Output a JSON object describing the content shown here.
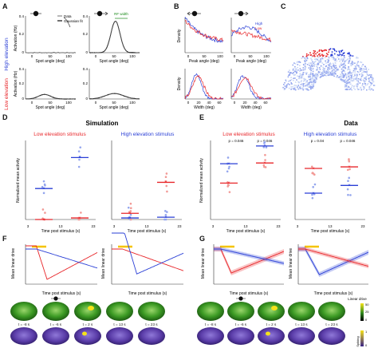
{
  "panel_letters": [
    "A",
    "B",
    "C",
    "D",
    "E",
    "F",
    "G"
  ],
  "row_labels": {
    "high": "High elevation",
    "low": "Low elevation"
  },
  "colors": {
    "red": "#e8262a",
    "blue": "#2a3fd6",
    "light_red": "#f29a96",
    "light_blue": "#94a6ee",
    "gray": "#999999",
    "yellow": "#f5c400",
    "green_brain": "#2f8a1e",
    "purple_brain": "#5e3fb0"
  },
  "panel_a": {
    "ylabel": "Activation (Hz)",
    "xlabel": "Spot angle (deg)",
    "legend": [
      "Data",
      "Gaussian fit"
    ],
    "rf_label": "RF width",
    "y_ticks_top": [
      "0.4",
      "0.2",
      "0"
    ],
    "y_ticks_bottom": [
      "0.4",
      "0.2",
      "0"
    ],
    "x_ticks": [
      "0",
      "50",
      "100"
    ]
  },
  "panel_b": {
    "ylabel_top": "Density",
    "ylabel_bottom": "Density",
    "xlabel_top": "Peak angle (deg)",
    "xlabel_bottom": "Width (deg)",
    "legend": [
      "High",
      "Low"
    ],
    "x_ticks_top": [
      "0",
      "50",
      "100"
    ],
    "x_ticks_bottom": [
      "0",
      "20",
      "40",
      "60"
    ]
  },
  "panel_d": {
    "section_title": "Simulation",
    "left_title": "Low elevation stimulus",
    "right_title": "High elevation stimulus",
    "ylabel": "Normalized mean activity",
    "xlabel": "Time post stimulus (s)",
    "x_ticks": [
      "3",
      "13",
      "23"
    ],
    "y_ticks": [
      "1",
      "0.8",
      "0.6",
      "0.4",
      "0.2",
      "0"
    ]
  },
  "panel_e": {
    "section_title": "Data",
    "left_title": "Low elevation stimulus",
    "right_title": "High elevation stimulus",
    "ylabel": "Normalized mean activity",
    "xlabel": "Time post stimulus (s)",
    "x_ticks": [
      "3",
      "13",
      "23"
    ],
    "y_ticks": [
      "1",
      "0.8",
      "0.6",
      "0.4",
      "0.2",
      "0"
    ],
    "pvals_left": [
      "p = 0.046",
      "p = 0.046"
    ],
    "pvals_right": [
      "p = 0.04",
      "p = 0.046"
    ]
  },
  "panel_f": {
    "ylabel": "Mean linear drive",
    "xlabel": "Time post stimulus (s)",
    "x_ticks": [
      "-5",
      "0",
      "5",
      "10",
      "15",
      "20"
    ],
    "y_ticks": [
      "40",
      "20",
      "0",
      "-20",
      "-40",
      "-60"
    ]
  },
  "panel_g": {
    "ylabel": "Mean linear drive",
    "xlabel": "Time post stimulus (s)",
    "x_ticks": [
      "-5",
      "0",
      "5",
      "10",
      "15",
      "20"
    ]
  },
  "brain_strip": {
    "times": [
      "t = -8 s",
      "t = -6 s",
      "t = 2 s",
      "t = 13 s",
      "t = 23 s",
      "t = -8 s",
      "t = -6 s",
      "t = 2 s",
      "t = 13 s",
      "t = 23 s"
    ],
    "colorbar_top_label": "Linear drive",
    "colorbar_top_ticks": [
      "50",
      "25",
      "0"
    ],
    "colorbar_bottom_label": "Spiking",
    "colorbar_bottom_ticks": [
      "0",
      "1"
    ]
  },
  "chart_data": [
    {
      "id": "D-left",
      "type": "scatter",
      "title": "Low elevation stimulus",
      "xlabel": "Time post stimulus (s)",
      "ylabel": "Normalized mean activity",
      "ylim": [
        0,
        1
      ],
      "series": [
        {
          "name": "High",
          "values": [
            0.4,
            0.8
          ]
        },
        {
          "name": "Low",
          "values": [
            0.0,
            0.02
          ]
        }
      ],
      "categories": [
        "3",
        "13"
      ]
    },
    {
      "id": "D-right",
      "type": "scatter",
      "title": "High elevation stimulus",
      "xlabel": "Time post stimulus (s)",
      "ylabel": "Normalized mean activity",
      "ylim": [
        0,
        1
      ],
      "series": [
        {
          "name": "High",
          "values": [
            0.02,
            0.03
          ]
        },
        {
          "name": "Low",
          "values": [
            0.08,
            0.48
          ]
        }
      ],
      "categories": [
        "3",
        "13"
      ]
    },
    {
      "id": "E-left",
      "type": "scatter",
      "title": "Low elevation stimulus",
      "ylim": [
        0,
        1
      ],
      "series": [
        {
          "name": "High",
          "values": [
            0.72,
            0.95
          ]
        },
        {
          "name": "Low",
          "values": [
            0.47,
            0.73
          ]
        }
      ],
      "categories": [
        "3",
        "13"
      ]
    },
    {
      "id": "E-right",
      "type": "scatter",
      "title": "High elevation stimulus",
      "ylim": [
        0,
        1
      ],
      "series": [
        {
          "name": "High",
          "values": [
            0.34,
            0.44
          ]
        },
        {
          "name": "Low",
          "values": [
            0.66,
            0.68
          ]
        }
      ],
      "categories": [
        "3",
        "13"
      ]
    }
  ]
}
